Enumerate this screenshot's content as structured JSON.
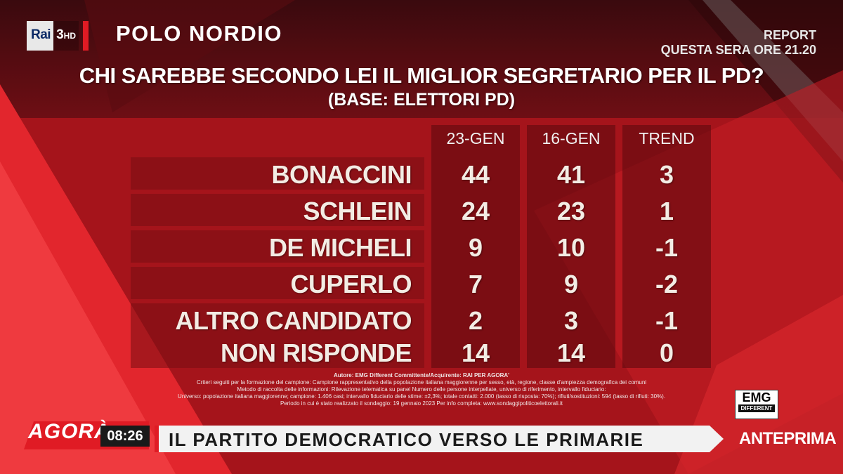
{
  "header": {
    "logo_rai": "Rai",
    "logo_channel": "3",
    "logo_hd": "HD",
    "program": "POLO NORDIO",
    "promo_line1": "REPORT",
    "promo_line2": "QUESTA SERA ORE 21.20"
  },
  "poll": {
    "title": "CHI SAREBBE SECONDO LEI IL MIGLIOR SEGRETARIO PER IL PD?",
    "subtitle": "(BASE: ELETTORI PD)",
    "columns": [
      "23-GEN",
      "16-GEN",
      "TREND"
    ],
    "rows": [
      {
        "name": "BONACCINI",
        "v1": "44",
        "v2": "41",
        "trend": "3"
      },
      {
        "name": "SCHLEIN",
        "v1": "24",
        "v2": "23",
        "trend": "1"
      },
      {
        "name": "DE MICHELI",
        "v1": "9",
        "v2": "10",
        "trend": "-1"
      },
      {
        "name": "CUPERLO",
        "v1": "7",
        "v2": "9",
        "trend": "-2"
      },
      {
        "name": "ALTRO CANDIDATO",
        "v1": "2",
        "v2": "3",
        "trend": "-1"
      },
      {
        "name": "NON RISPONDE",
        "v1": "14",
        "v2": "14",
        "trend": "0"
      }
    ]
  },
  "notes": [
    "Autore: EMG Different Committente/Acquirente: RAI PER AGORA'",
    "Criteri seguiti per la formazione del campione: Campione rappresentativo della popolazione italiana maggiorenne per sesso, età, regione, classe d'ampiezza demografica dei comuni",
    "Metodo di raccolta delle informazioni: Rilevazione telematica su panel Numero delle persone interpellate, universo di riferimento, intervallo fiduciario:",
    "Universo: popolazione italiana maggiorenne; campione: 1.406 casi; intervallo fiduciario delle stime: ±2,3%; totale contatti: 2.000 (tasso di risposta: 70%); rifiuti/sostituzioni: 594 (tasso di rifiuti: 30%).",
    "Periodo in cui è stato realizzato il sondaggio: 19 gennaio 2023 Per info completa: www.sondaggipoliticoelettorali.it"
  ],
  "emg": {
    "line1": "EMG",
    "line2": "DIFFERENT"
  },
  "lower_third": {
    "show": "AGORÀ",
    "time": "08:26",
    "headline": "IL PARTITO DEMOCRATICO VERSO LE PRIMARIE",
    "tag": "ANTEPRIMA"
  },
  "colors": {
    "background": "#9b1218",
    "accent": "#e01b24",
    "strap": "#f2f2f2"
  }
}
